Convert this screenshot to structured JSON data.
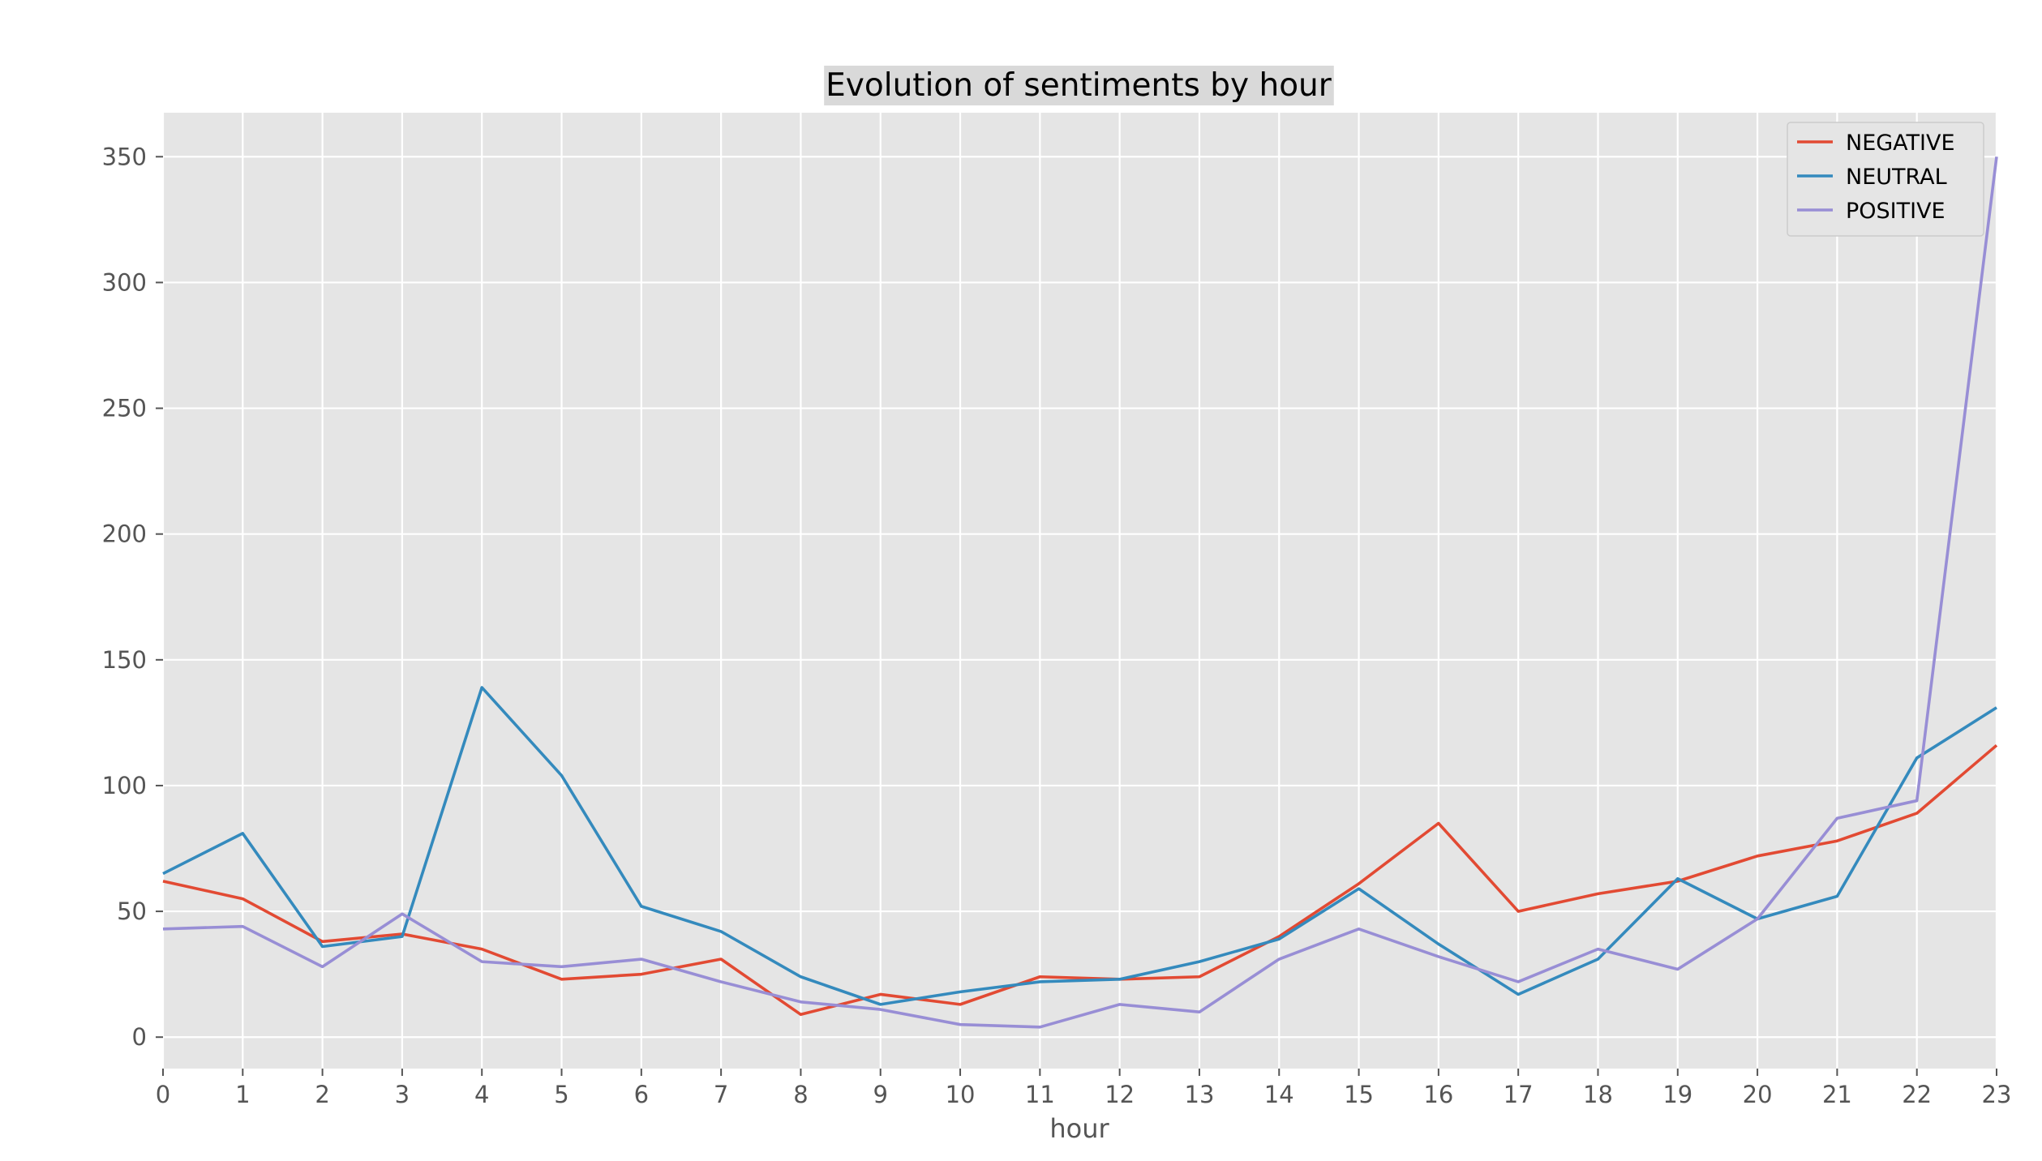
{
  "chart_data": {
    "type": "line",
    "title": "Evolution of sentiments by hour",
    "xlabel": "hour",
    "ylabel": "",
    "x": [
      0,
      1,
      2,
      3,
      4,
      5,
      6,
      7,
      8,
      9,
      10,
      11,
      12,
      13,
      14,
      15,
      16,
      17,
      18,
      19,
      20,
      21,
      22,
      23
    ],
    "xlim": [
      0,
      23
    ],
    "ylim": [
      -12.5,
      367.5
    ],
    "yticks": [
      0,
      50,
      100,
      150,
      200,
      250,
      300,
      350
    ],
    "grid": true,
    "legend_position": "top-right",
    "series": [
      {
        "name": "NEGATIVE",
        "color": "#E24A33",
        "values": [
          62,
          55,
          38,
          41,
          35,
          23,
          25,
          31,
          9,
          17,
          13,
          24,
          23,
          24,
          40,
          61,
          85,
          50,
          57,
          62,
          72,
          78,
          89,
          116
        ]
      },
      {
        "name": "NEUTRAL",
        "color": "#348ABD",
        "values": [
          65,
          81,
          36,
          40,
          139,
          104,
          52,
          42,
          24,
          13,
          18,
          22,
          23,
          30,
          39,
          59,
          37,
          17,
          31,
          63,
          47,
          56,
          111,
          131
        ]
      },
      {
        "name": "POSITIVE",
        "color": "#988ED5",
        "values": [
          43,
          44,
          28,
          49,
          30,
          28,
          31,
          22,
          14,
          11,
          5,
          4,
          13,
          10,
          31,
          43,
          32,
          22,
          35,
          27,
          47,
          87,
          94,
          350
        ]
      }
    ]
  }
}
